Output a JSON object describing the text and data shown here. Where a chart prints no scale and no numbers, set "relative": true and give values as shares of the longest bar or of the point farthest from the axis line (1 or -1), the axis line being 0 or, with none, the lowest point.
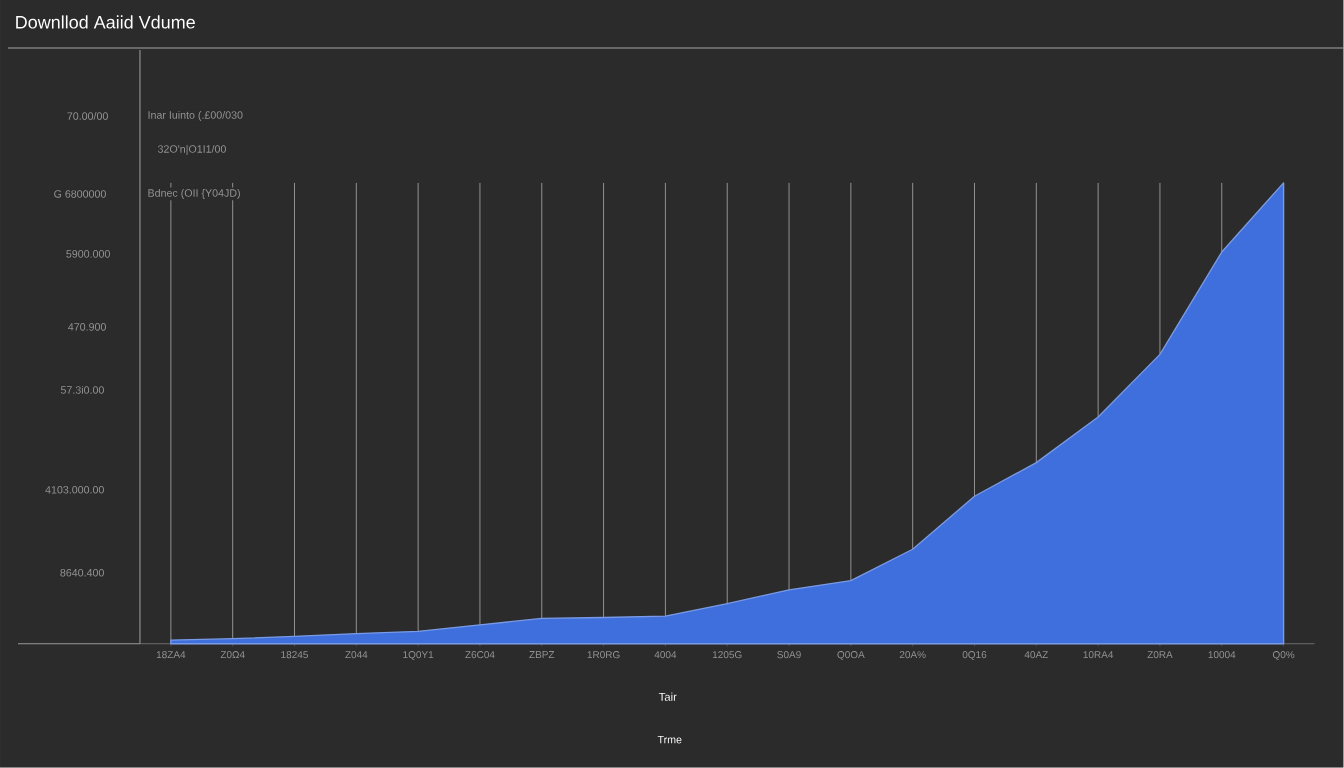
{
  "chart_data": {
    "type": "area",
    "title": "Downllod Aaiid Vdume",
    "xlabel": "Tair",
    "relative": true,
    "grid": "x",
    "categories": [
      "18ZA4",
      "Z0Ω4",
      "18245",
      "Z044",
      "1Q0Y1",
      "Z6C04",
      "ZBPZ",
      "1R0RG",
      "4004",
      "1205G",
      "S0A9",
      "Q0OA",
      "20A%",
      "0Q16",
      "40AZ",
      "10RA4",
      "Z0RA",
      "10004",
      "Q0%"
    ],
    "series": [
      {
        "color": "#3f6fdc",
        "values": [
          0.008,
          0.011,
          0.016,
          0.022,
          0.027,
          0.041,
          0.055,
          0.057,
          0.06,
          0.087,
          0.117,
          0.137,
          0.205,
          0.32,
          0.393,
          0.492,
          0.628,
          0.85,
          1
        ]
      }
    ],
    "annotations": [
      "70.00/00",
      "Inar Iuinto (.£00/030",
      "32O'n|O1I1/00",
      "G 6800000",
      "Bdnec (OII {Y04JD)",
      "5900.000",
      "470.900",
      "57.3i0.00",
      "4103.000.00",
      "8640.400",
      "Trme"
    ]
  }
}
